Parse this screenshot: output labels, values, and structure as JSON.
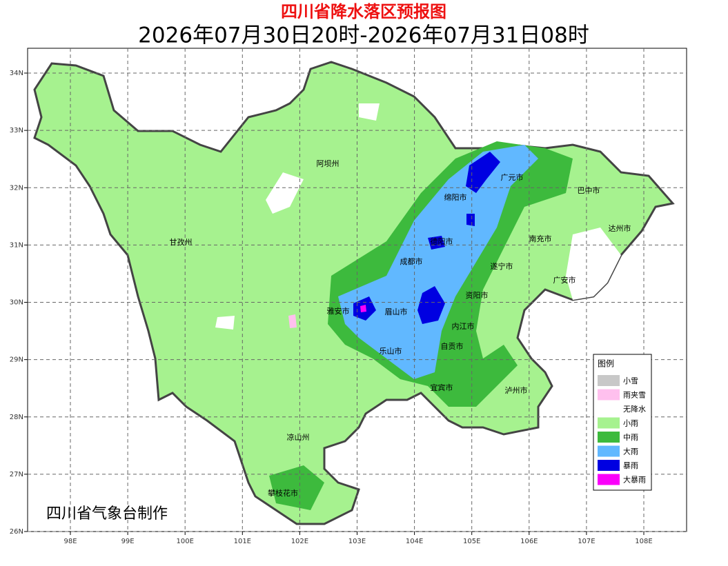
{
  "header": {
    "title": "四川省降水落区预报图",
    "subtitle": "2026年07月30日20时-2026年07月31日08时"
  },
  "map": {
    "lon_ticks": [
      {
        "value": 98,
        "label": "98E"
      },
      {
        "value": 99,
        "label": "99E"
      },
      {
        "value": 100,
        "label": "100E"
      },
      {
        "value": 101,
        "label": "101E"
      },
      {
        "value": 102,
        "label": "102E"
      },
      {
        "value": 103,
        "label": "103E"
      },
      {
        "value": 104,
        "label": "104E"
      },
      {
        "value": 105,
        "label": "105E"
      },
      {
        "value": 106,
        "label": "106E"
      },
      {
        "value": 107,
        "label": "107E"
      },
      {
        "value": 108,
        "label": "108E"
      }
    ],
    "lat_ticks": [
      {
        "value": 26,
        "label": "26N"
      },
      {
        "value": 27,
        "label": "27N"
      },
      {
        "value": 28,
        "label": "28N"
      },
      {
        "value": 29,
        "label": "29N"
      },
      {
        "value": 30,
        "label": "30N"
      },
      {
        "value": 31,
        "label": "31N"
      },
      {
        "value": 32,
        "label": "32N"
      },
      {
        "value": 33,
        "label": "33N"
      },
      {
        "value": 34,
        "label": "34N"
      }
    ],
    "cities": [
      "阿坝州",
      "甘孜州",
      "广元市",
      "巴中市",
      "绵阳市",
      "达州市",
      "德阳市",
      "南充市",
      "成都市",
      "遂宁市",
      "广安市",
      "资阳市",
      "雅安市",
      "眉山市",
      "内江市",
      "乐山市",
      "自贡市",
      "泸州市",
      "宜宾市",
      "凉山州",
      "攀枝花市"
    ],
    "credit": "四川省气象台制作"
  },
  "legend": {
    "title": "图例",
    "items": [
      {
        "label": "小雪",
        "color": "#c8c8c8"
      },
      {
        "label": "雨夹雪",
        "color": "#ffc0ee"
      },
      {
        "label": "无降水",
        "color": "#ffffff"
      },
      {
        "label": "小雨",
        "color": "#a6f28f"
      },
      {
        "label": "中雨",
        "color": "#3dba3d"
      },
      {
        "label": "大雨",
        "color": "#61b8ff"
      },
      {
        "label": "暴雨",
        "color": "#0000e1"
      },
      {
        "label": "大暴雨",
        "color": "#fa00fa"
      }
    ]
  }
}
